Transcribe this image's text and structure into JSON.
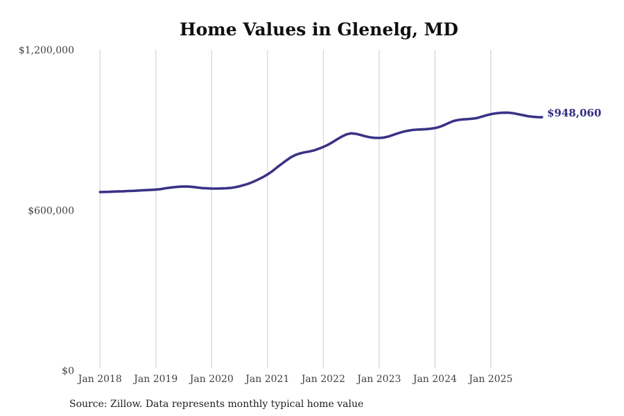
{
  "chart_data": {
    "type": "line",
    "title": "Home Values in Glenelg, MD",
    "source_note": "Source: Zillow. Data represents monthly typical home value",
    "latest_value_label": "$948,060",
    "latest_value": 948060,
    "unit": "USD",
    "x_start": "Jan 2018",
    "x_end": "Dec 2025",
    "x_frequency": "monthly",
    "x_tick_labels": [
      "Jan 2018",
      "Jan 2019",
      "Jan 2020",
      "Jan 2021",
      "Jan 2022",
      "Jan 2023",
      "Jan 2024",
      "Jan 2025"
    ],
    "y_ticks": [
      {
        "value": 0,
        "label": "$0"
      },
      {
        "value": 600000,
        "label": "$600,000"
      },
      {
        "value": 1200000,
        "label": "$1,200,000"
      }
    ],
    "ylim": [
      0,
      1200000
    ],
    "grid": "vertical-only",
    "legend_position": "none",
    "colors": {
      "line": "#3a3286",
      "end_label": "#322c80",
      "grid": "#cccccc",
      "axis_text": "#3f3f3f",
      "title_text": "#0f0f0f"
    },
    "series": [
      {
        "name": "Typical home value",
        "values": [
          668000,
          668500,
          669000,
          670000,
          670500,
          671000,
          672000,
          672500,
          673500,
          674500,
          675500,
          676500,
          677500,
          679000,
          682000,
          684500,
          686500,
          688000,
          689000,
          688500,
          687000,
          685000,
          683000,
          682000,
          681000,
          681000,
          681500,
          682000,
          683500,
          686000,
          690000,
          694500,
          700000,
          707000,
          715000,
          724000,
          734000,
          746000,
          760000,
          773000,
          786000,
          798000,
          807000,
          813000,
          817000,
          820000,
          824000,
          830000,
          837000,
          845000,
          855000,
          866000,
          876000,
          884000,
          888000,
          886000,
          882000,
          877000,
          873000,
          871000,
          870500,
          872000,
          876000,
          882000,
          888000,
          893000,
          897000,
          900000,
          901500,
          902500,
          903500,
          905000,
          907500,
          912000,
          919000,
          927000,
          934000,
          938000,
          940000,
          941000,
          942500,
          945000,
          950000,
          955000,
          959500,
          962500,
          964500,
          965500,
          965000,
          962500,
          959000,
          955500,
          952000,
          950000,
          948500,
          948060
        ]
      }
    ]
  }
}
